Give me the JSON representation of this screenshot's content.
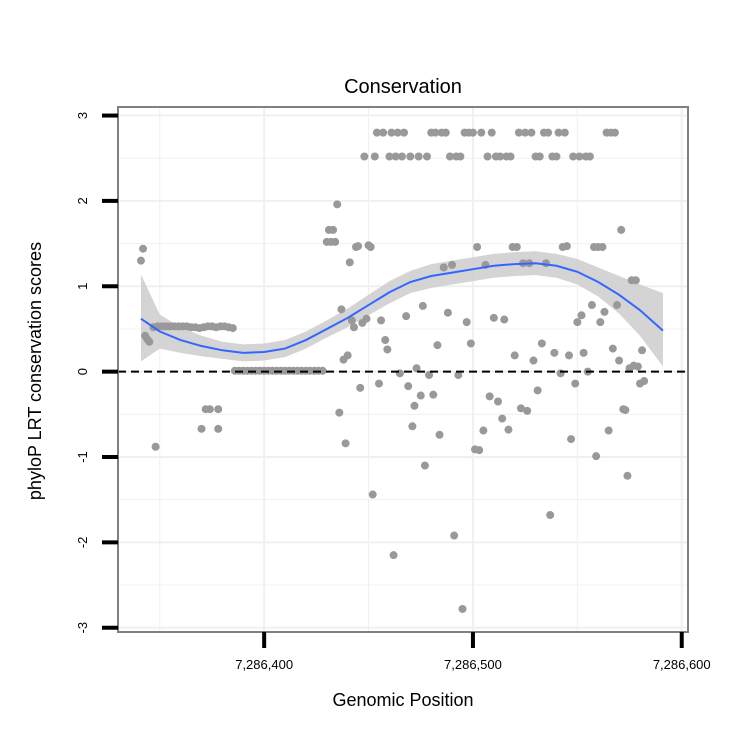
{
  "chart_data": {
    "type": "scatter",
    "title": "Conservation",
    "xlabel": "Genomic Position",
    "ylabel": "phyloP LRT conservation scores",
    "xlim": [
      7286330,
      7286603
    ],
    "ylim": [
      -3.05,
      3.1
    ],
    "x_ticks": [
      {
        "value": 7286400,
        "label": "7,286,400"
      },
      {
        "value": 7286500,
        "label": "7,286,500"
      },
      {
        "value": 7286600,
        "label": "7,286,600"
      }
    ],
    "y_ticks": [
      {
        "value": -3,
        "label": "-3"
      },
      {
        "value": -2,
        "label": "-2"
      },
      {
        "value": -1,
        "label": "-1"
      },
      {
        "value": 0,
        "label": "0"
      },
      {
        "value": 1,
        "label": "1"
      },
      {
        "value": 2,
        "label": "2"
      },
      {
        "value": 3,
        "label": "3"
      }
    ],
    "grid": true,
    "reference_line": {
      "y": 0,
      "style": "dashed"
    },
    "colors": {
      "points": "#999999",
      "smooth": "#3366ff",
      "band": "#cccccc",
      "panel_border": "#808080",
      "grid": "#f0f0f0"
    },
    "smooth": {
      "x": [
        7286341,
        7286350,
        7286360,
        7286370,
        7286380,
        7286390,
        7286400,
        7286410,
        7286420,
        7286430,
        7286440,
        7286450,
        7286460,
        7286470,
        7286480,
        7286490,
        7286500,
        7286510,
        7286520,
        7286530,
        7286540,
        7286550,
        7286560,
        7286570,
        7286580,
        7286591
      ],
      "y": [
        0.62,
        0.47,
        0.37,
        0.3,
        0.25,
        0.22,
        0.23,
        0.27,
        0.37,
        0.5,
        0.63,
        0.78,
        0.93,
        1.05,
        1.12,
        1.16,
        1.2,
        1.24,
        1.26,
        1.27,
        1.24,
        1.17,
        1.05,
        0.9,
        0.72,
        0.48
      ],
      "lower": [
        0.12,
        0.27,
        0.22,
        0.18,
        0.15,
        0.12,
        0.13,
        0.17,
        0.27,
        0.4,
        0.52,
        0.66,
        0.8,
        0.92,
        0.98,
        1.02,
        1.06,
        1.1,
        1.12,
        1.13,
        1.1,
        1.02,
        0.88,
        0.68,
        0.42,
        0.06
      ],
      "upper": [
        1.14,
        0.67,
        0.52,
        0.42,
        0.35,
        0.32,
        0.33,
        0.37,
        0.47,
        0.6,
        0.74,
        0.9,
        1.06,
        1.18,
        1.26,
        1.3,
        1.34,
        1.38,
        1.4,
        1.41,
        1.38,
        1.32,
        1.22,
        1.12,
        1.02,
        0.92
      ]
    },
    "points": [
      [
        7286341,
        1.3
      ],
      [
        7286342,
        1.44
      ],
      [
        7286343,
        0.42
      ],
      [
        7286344,
        0.38
      ],
      [
        7286345,
        0.35
      ],
      [
        7286347,
        0.52
      ],
      [
        7286348,
        -0.88
      ],
      [
        7286349,
        0.53
      ],
      [
        7286351,
        0.53
      ],
      [
        7286353,
        0.53
      ],
      [
        7286355,
        0.53
      ],
      [
        7286357,
        0.53
      ],
      [
        7286359,
        0.53
      ],
      [
        7286361,
        0.53
      ],
      [
        7286363,
        0.53
      ],
      [
        7286365,
        0.52
      ],
      [
        7286367,
        0.52
      ],
      [
        7286369,
        0.51
      ],
      [
        7286371,
        0.52
      ],
      [
        7286373,
        0.53
      ],
      [
        7286375,
        0.53
      ],
      [
        7286377,
        0.52
      ],
      [
        7286379,
        0.53
      ],
      [
        7286381,
        0.53
      ],
      [
        7286383,
        0.52
      ],
      [
        7286385,
        0.51
      ],
      [
        7286370,
        -0.67
      ],
      [
        7286372,
        -0.44
      ],
      [
        7286374,
        -0.44
      ],
      [
        7286378,
        -0.44
      ],
      [
        7286378,
        -0.67
      ],
      [
        7286386,
        0.01
      ],
      [
        7286388,
        0.01
      ],
      [
        7286390,
        0.01
      ],
      [
        7286392,
        0.01
      ],
      [
        7286394,
        0.01
      ],
      [
        7286396,
        0.01
      ],
      [
        7286398,
        0.01
      ],
      [
        7286400,
        0.01
      ],
      [
        7286402,
        0.01
      ],
      [
        7286404,
        0.01
      ],
      [
        7286406,
        0.01
      ],
      [
        7286408,
        0.01
      ],
      [
        7286410,
        0.01
      ],
      [
        7286412,
        0.01
      ],
      [
        7286414,
        0.01
      ],
      [
        7286416,
        0.01
      ],
      [
        7286418,
        0.01
      ],
      [
        7286420,
        0.01
      ],
      [
        7286422,
        0.01
      ],
      [
        7286424,
        0.01
      ],
      [
        7286426,
        0.01
      ],
      [
        7286428,
        0.01
      ],
      [
        7286430,
        1.52
      ],
      [
        7286431,
        1.66
      ],
      [
        7286432,
        1.52
      ],
      [
        7286433,
        1.66
      ],
      [
        7286434,
        1.52
      ],
      [
        7286435,
        1.96
      ],
      [
        7286436,
        -0.48
      ],
      [
        7286437,
        0.73
      ],
      [
        7286438,
        0.14
      ],
      [
        7286439,
        -0.84
      ],
      [
        7286440,
        0.19
      ],
      [
        7286441,
        1.28
      ],
      [
        7286442,
        0.6
      ],
      [
        7286443,
        0.52
      ],
      [
        7286444,
        1.46
      ],
      [
        7286445,
        1.47
      ],
      [
        7286446,
        -0.19
      ],
      [
        7286447,
        0.57
      ],
      [
        7286448,
        2.52
      ],
      [
        7286449,
        0.62
      ],
      [
        7286450,
        1.48
      ],
      [
        7286451,
        1.46
      ],
      [
        7286452,
        -1.44
      ],
      [
        7286453,
        2.52
      ],
      [
        7286454,
        2.8
      ],
      [
        7286455,
        -0.14
      ],
      [
        7286456,
        0.6
      ],
      [
        7286457,
        2.8
      ],
      [
        7286458,
        0.37
      ],
      [
        7286459,
        0.26
      ],
      [
        7286460,
        2.52
      ],
      [
        7286461,
        2.8
      ],
      [
        7286462,
        -2.15
      ],
      [
        7286463,
        2.52
      ],
      [
        7286464,
        2.8
      ],
      [
        7286465,
        -0.02
      ],
      [
        7286466,
        2.52
      ],
      [
        7286467,
        2.8
      ],
      [
        7286468,
        0.65
      ],
      [
        7286469,
        -0.17
      ],
      [
        7286470,
        2.52
      ],
      [
        7286471,
        -0.64
      ],
      [
        7286472,
        -0.4
      ],
      [
        7286473,
        0.04
      ],
      [
        7286474,
        2.52
      ],
      [
        7286475,
        -0.28
      ],
      [
        7286476,
        0.77
      ],
      [
        7286477,
        -1.1
      ],
      [
        7286478,
        2.52
      ],
      [
        7286479,
        -0.04
      ],
      [
        7286480,
        2.8
      ],
      [
        7286481,
        -0.27
      ],
      [
        7286482,
        2.8
      ],
      [
        7286483,
        0.31
      ],
      [
        7286484,
        -0.74
      ],
      [
        7286485,
        2.8
      ],
      [
        7286486,
        1.22
      ],
      [
        7286487,
        2.8
      ],
      [
        7286488,
        0.69
      ],
      [
        7286489,
        2.52
      ],
      [
        7286490,
        1.25
      ],
      [
        7286491,
        -1.92
      ],
      [
        7286492,
        2.52
      ],
      [
        7286493,
        -0.04
      ],
      [
        7286494,
        2.52
      ],
      [
        7286495,
        -2.78
      ],
      [
        7286496,
        2.8
      ],
      [
        7286497,
        0.58
      ],
      [
        7286498,
        2.8
      ],
      [
        7286499,
        0.33
      ],
      [
        7286500,
        2.8
      ],
      [
        7286501,
        -0.91
      ],
      [
        7286502,
        1.46
      ],
      [
        7286503,
        -0.92
      ],
      [
        7286504,
        2.8
      ],
      [
        7286505,
        -0.69
      ],
      [
        7286506,
        1.25
      ],
      [
        7286507,
        2.52
      ],
      [
        7286508,
        -0.29
      ],
      [
        7286509,
        2.8
      ],
      [
        7286510,
        0.63
      ],
      [
        7286511,
        2.52
      ],
      [
        7286512,
        -0.35
      ],
      [
        7286513,
        2.52
      ],
      [
        7286514,
        -0.55
      ],
      [
        7286515,
        0.61
      ],
      [
        7286516,
        2.52
      ],
      [
        7286517,
        -0.68
      ],
      [
        7286518,
        2.52
      ],
      [
        7286519,
        1.46
      ],
      [
        7286520,
        0.19
      ],
      [
        7286521,
        1.46
      ],
      [
        7286522,
        2.8
      ],
      [
        7286523,
        -0.43
      ],
      [
        7286524,
        1.27
      ],
      [
        7286525,
        2.8
      ],
      [
        7286526,
        -0.46
      ],
      [
        7286527,
        1.27
      ],
      [
        7286528,
        2.8
      ],
      [
        7286529,
        0.13
      ],
      [
        7286530,
        2.52
      ],
      [
        7286531,
        -0.22
      ],
      [
        7286532,
        2.52
      ],
      [
        7286533,
        0.33
      ],
      [
        7286534,
        2.8
      ],
      [
        7286535,
        1.27
      ],
      [
        7286536,
        2.8
      ],
      [
        7286537,
        -1.68
      ],
      [
        7286538,
        2.52
      ],
      [
        7286539,
        0.22
      ],
      [
        7286540,
        2.52
      ],
      [
        7286541,
        2.8
      ],
      [
        7286542,
        -0.02
      ],
      [
        7286543,
        1.46
      ],
      [
        7286544,
        2.8
      ],
      [
        7286545,
        1.47
      ],
      [
        7286546,
        0.19
      ],
      [
        7286547,
        -0.79
      ],
      [
        7286548,
        2.52
      ],
      [
        7286549,
        -0.14
      ],
      [
        7286550,
        0.58
      ],
      [
        7286551,
        2.52
      ],
      [
        7286552,
        0.66
      ],
      [
        7286553,
        0.22
      ],
      [
        7286554,
        2.52
      ],
      [
        7286555,
        0.0
      ],
      [
        7286556,
        2.52
      ],
      [
        7286557,
        0.78
      ],
      [
        7286558,
        1.46
      ],
      [
        7286559,
        -0.99
      ],
      [
        7286560,
        1.46
      ],
      [
        7286561,
        0.58
      ],
      [
        7286562,
        1.46
      ],
      [
        7286563,
        0.7
      ],
      [
        7286564,
        2.8
      ],
      [
        7286565,
        -0.69
      ],
      [
        7286566,
        2.8
      ],
      [
        7286567,
        0.27
      ],
      [
        7286568,
        2.8
      ],
      [
        7286569,
        0.78
      ],
      [
        7286570,
        0.13
      ],
      [
        7286571,
        1.66
      ],
      [
        7286572,
        -0.44
      ],
      [
        7286573,
        -0.45
      ],
      [
        7286574,
        -1.22
      ],
      [
        7286575,
        0.04
      ],
      [
        7286576,
        1.07
      ],
      [
        7286577,
        0.07
      ],
      [
        7286578,
        1.07
      ],
      [
        7286579,
        0.06
      ],
      [
        7286580,
        -0.14
      ],
      [
        7286581,
        0.25
      ],
      [
        7286582,
        -0.11
      ]
    ]
  }
}
